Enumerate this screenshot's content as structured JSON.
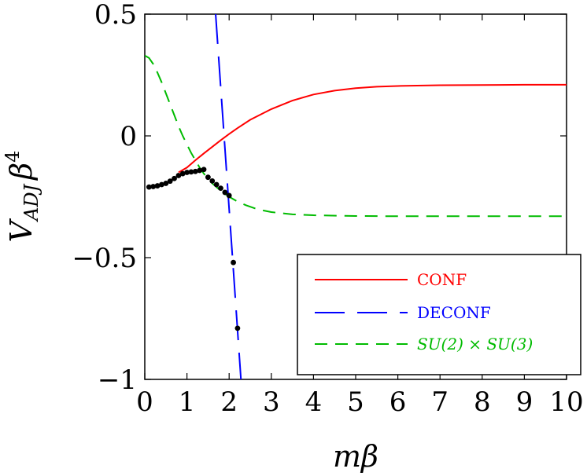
{
  "chart_data": {
    "type": "line",
    "xlabel": "mβ",
    "ylabel": {
      "main": "V",
      "sub": "ADJ",
      "tail": "β",
      "sup": "4"
    },
    "xlim": [
      0,
      10
    ],
    "ylim": [
      -1,
      0.5
    ],
    "x_ticks": [
      0,
      1,
      2,
      3,
      4,
      5,
      6,
      7,
      8,
      9,
      10
    ],
    "x_tick_labels": [
      "0",
      "1",
      "2",
      "3",
      "4",
      "5",
      "6",
      "7",
      "8",
      "9",
      "10"
    ],
    "y_ticks": [
      -1,
      -0.5,
      0,
      0.5
    ],
    "y_tick_labels": [
      "−1",
      "−0.5",
      "0",
      "0.5"
    ],
    "grid": false,
    "legend_position": "bottom-right",
    "series": [
      {
        "name": "CONF",
        "color": "#ff0000",
        "style": "solid",
        "x": [
          0.8,
          1.0,
          1.2,
          1.4,
          1.6,
          1.8,
          2.0,
          2.2,
          2.5,
          3.0,
          3.5,
          4.0,
          4.5,
          5.0,
          5.5,
          6.0,
          7.0,
          8.0,
          9.0,
          10.0
        ],
        "y": [
          -0.15,
          -0.13,
          -0.1,
          -0.072,
          -0.045,
          -0.018,
          0.008,
          0.032,
          0.066,
          0.11,
          0.145,
          0.17,
          0.186,
          0.196,
          0.202,
          0.205,
          0.208,
          0.209,
          0.21,
          0.21
        ]
      },
      {
        "name": "DECONF",
        "color": "#0000ff",
        "style": "long-dash",
        "x": [
          1.68,
          2.28
        ],
        "y": [
          0.5,
          -1.0
        ]
      },
      {
        "name": "SU(2) × SU(3)",
        "color": "#00bb00",
        "style": "dash",
        "x": [
          0,
          0.1,
          0.2,
          0.3,
          0.4,
          0.5,
          0.6,
          0.7,
          0.8,
          0.9,
          1.0,
          1.1,
          1.2,
          1.3,
          1.4,
          1.5,
          1.6,
          1.7,
          1.8,
          1.9,
          2.0,
          2.2,
          2.4,
          2.6,
          2.8,
          3.0,
          3.5,
          4.0,
          5.0,
          6.0,
          8.0,
          10.0
        ],
        "y": [
          0.33,
          0.32,
          0.295,
          0.26,
          0.22,
          0.175,
          0.13,
          0.085,
          0.04,
          0.0,
          -0.035,
          -0.07,
          -0.1,
          -0.13,
          -0.155,
          -0.175,
          -0.195,
          -0.21,
          -0.225,
          -0.238,
          -0.25,
          -0.27,
          -0.285,
          -0.297,
          -0.306,
          -0.313,
          -0.322,
          -0.326,
          -0.329,
          -0.33,
          -0.33,
          -0.33
        ]
      },
      {
        "name": "",
        "color": "#000000",
        "style": "points",
        "x": [
          0.1,
          0.2,
          0.3,
          0.4,
          0.5,
          0.6,
          0.7,
          0.8,
          0.9,
          1.0,
          1.1,
          1.2,
          1.3,
          1.4,
          1.5,
          1.6,
          1.7,
          1.8,
          1.9,
          2.0,
          2.1,
          2.2
        ],
        "y": [
          -0.21,
          -0.208,
          -0.205,
          -0.2,
          -0.195,
          -0.186,
          -0.175,
          -0.163,
          -0.155,
          -0.15,
          -0.148,
          -0.146,
          -0.142,
          -0.138,
          -0.17,
          -0.185,
          -0.2,
          -0.215,
          -0.232,
          -0.245,
          -0.52,
          -0.79
        ]
      }
    ],
    "legend": [
      {
        "label": "CONF",
        "color": "#ff0000",
        "style": "solid"
      },
      {
        "label": "DECONF",
        "color": "#0000ff",
        "style": "long-dash"
      },
      {
        "label": "SU(2) × SU(3)",
        "color": "#00bb00",
        "style": "dash"
      }
    ]
  }
}
